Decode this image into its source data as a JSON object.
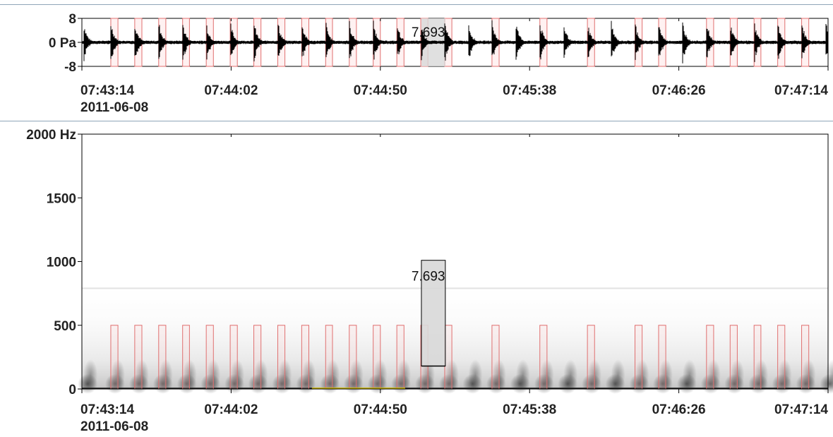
{
  "waveform": {
    "y_ticks": [
      {
        "value": 8,
        "label": "8"
      },
      {
        "value": 0,
        "label": "0 Pa"
      },
      {
        "value": -8,
        "label": "-8"
      }
    ],
    "ylim": [
      -8,
      8
    ]
  },
  "spectrogram": {
    "y_ticks": [
      {
        "value": 2000,
        "label": "2000 Hz"
      },
      {
        "value": 1500,
        "label": "1500"
      },
      {
        "value": 1000,
        "label": "1000"
      },
      {
        "value": 500,
        "label": "500"
      },
      {
        "value": 0,
        "label": "0"
      }
    ],
    "ylim": [
      0,
      2000
    ]
  },
  "time_axis": {
    "range_seconds_from_start": [
      0,
      240
    ],
    "ticks": [
      {
        "t": 0,
        "label": "07:43:14",
        "sublabel": "2011-06-08"
      },
      {
        "t": 48,
        "label": "07:44:02",
        "sublabel": ""
      },
      {
        "t": 96,
        "label": "07:44:50",
        "sublabel": ""
      },
      {
        "t": 144,
        "label": "07:45:38",
        "sublabel": ""
      },
      {
        "t": 192,
        "label": "07:46:26",
        "sublabel": ""
      },
      {
        "t": 240,
        "label": "07:47:14",
        "sublabel": ""
      }
    ]
  },
  "selection": {
    "label": "7.693",
    "t_start": 109.2,
    "t_end": 116.9,
    "freq_low": 180,
    "freq_high": 1010
  },
  "annotations": {
    "freq_high": 500,
    "intervals": [
      [
        9.3,
        11.6
      ],
      [
        17.0,
        19.3
      ],
      [
        24.7,
        27.0
      ],
      [
        32.4,
        34.6
      ],
      [
        40.0,
        42.3
      ],
      [
        47.7,
        50.0
      ],
      [
        55.3,
        57.6
      ],
      [
        63.0,
        65.3
      ],
      [
        70.7,
        73.0
      ],
      [
        78.4,
        80.6
      ],
      [
        86.0,
        88.3
      ],
      [
        93.7,
        96.0
      ],
      [
        101.3,
        103.6
      ],
      [
        109.0,
        111.3
      ],
      [
        116.7,
        119.0
      ],
      [
        131.9,
        134.2
      ],
      [
        147.3,
        149.6
      ],
      [
        162.6,
        164.9
      ],
      [
        177.9,
        180.2
      ],
      [
        185.5,
        187.8
      ],
      [
        200.9,
        203.2
      ],
      [
        208.5,
        210.8
      ],
      [
        216.2,
        218.4
      ],
      [
        223.8,
        226.1
      ],
      [
        231.5,
        233.8
      ]
    ],
    "color": "#e07070"
  },
  "calls": {
    "onsets": [
      0.5,
      9.3,
      17.0,
      24.7,
      32.4,
      40.0,
      47.7,
      55.3,
      63.0,
      70.7,
      78.4,
      86.0,
      93.7,
      101.3,
      109.0,
      116.7,
      124.3,
      131.9,
      139.6,
      147.3,
      154.9,
      162.6,
      170.2,
      177.9,
      185.5,
      193.2,
      200.9,
      208.5,
      216.2,
      223.8,
      231.5,
      239.2
    ]
  },
  "highlight": {
    "t_start": 74,
    "t_end": 104,
    "color": "#c8b400"
  },
  "colors": {
    "axis": "#000000",
    "selection_fill": "#d8d8d8",
    "waveform": "#000000"
  }
}
